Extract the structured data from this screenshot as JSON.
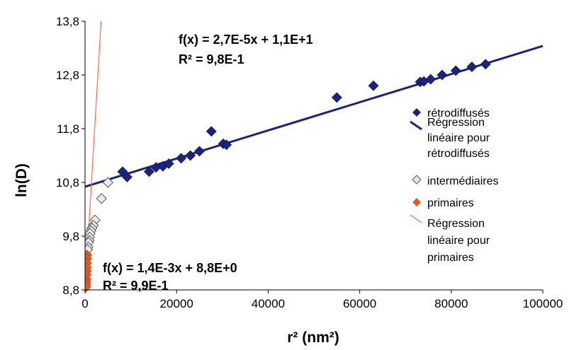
{
  "chart_data": {
    "type": "scatter",
    "xlabel": "r² (nm²)",
    "ylabel": "ln(D)",
    "xlim": [
      0,
      100000
    ],
    "ylim": [
      8.8,
      13.8
    ],
    "x_ticks": [
      "0",
      "20000",
      "40000",
      "60000",
      "80000",
      "100000"
    ],
    "x_tick_values": [
      0,
      20000,
      40000,
      60000,
      80000,
      100000
    ],
    "y_ticks": [
      "8,8",
      "9,8",
      "10,8",
      "11,8",
      "12,8",
      "13,8"
    ],
    "y_tick_values": [
      8.8,
      9.8,
      10.8,
      11.8,
      12.8,
      13.8
    ],
    "grid": false,
    "legend_position": "right",
    "series": [
      {
        "name": "rétrodiffusés",
        "kind": "points",
        "marker": "diamond",
        "color": "#1a237e",
        "points": [
          [
            8200,
            11.0
          ],
          [
            9200,
            10.9
          ],
          [
            14000,
            11.0
          ],
          [
            15500,
            11.08
          ],
          [
            17000,
            11.1
          ],
          [
            18300,
            11.15
          ],
          [
            21000,
            11.25
          ],
          [
            23000,
            11.3
          ],
          [
            25000,
            11.38
          ],
          [
            27600,
            11.75
          ],
          [
            30200,
            11.52
          ],
          [
            30900,
            11.5
          ],
          [
            55000,
            12.38
          ],
          [
            63000,
            12.6
          ],
          [
            73200,
            12.67
          ],
          [
            74000,
            12.68
          ],
          [
            75500,
            12.72
          ],
          [
            78000,
            12.8
          ],
          [
            81000,
            12.88
          ],
          [
            84500,
            12.95
          ],
          [
            87500,
            13.0
          ]
        ]
      },
      {
        "name": "Régression linéaire pour rétrodiffusés",
        "kind": "line",
        "color": "#1a237e",
        "points": [
          [
            0,
            10.72
          ],
          [
            100000,
            13.34
          ]
        ]
      },
      {
        "name": "intermédiaires",
        "kind": "points",
        "marker": "diamond-open",
        "color": "#d0d0d0",
        "points": [
          [
            5000,
            10.8
          ],
          [
            3600,
            10.5
          ],
          [
            2200,
            10.1
          ],
          [
            1800,
            10.0
          ],
          [
            1500,
            9.95
          ],
          [
            1300,
            9.9
          ],
          [
            1100,
            9.85
          ],
          [
            1000,
            9.78
          ],
          [
            900,
            9.72
          ],
          [
            750,
            9.68
          ],
          [
            650,
            9.6
          ],
          [
            550,
            9.55
          ]
        ]
      },
      {
        "name": "primaires",
        "kind": "points",
        "marker": "diamond",
        "color": "#e65a1e",
        "points": [
          [
            400,
            9.45
          ],
          [
            380,
            9.38
          ],
          [
            350,
            9.3
          ],
          [
            320,
            9.22
          ],
          [
            300,
            9.15
          ],
          [
            270,
            9.08
          ],
          [
            240,
            9.0
          ],
          [
            210,
            8.95
          ],
          [
            180,
            8.9
          ],
          [
            150,
            8.85
          ]
        ]
      },
      {
        "name": "Régression linéaire pour primaires",
        "kind": "line",
        "color": "#ff6a4a",
        "points": [
          [
            0,
            8.8
          ],
          [
            3500,
            13.8
          ]
        ]
      }
    ],
    "annotations": [
      {
        "lines": [
          "f(x) = 2,7E-5x + 1,1E+1",
          "R² = 9,8E-1"
        ]
      },
      {
        "lines": [
          "f(x) = 1,4E-3x + 8,8E+0",
          "R² = 9,9E-1"
        ]
      }
    ],
    "legend": [
      {
        "lines": [
          "rétrodiffusés"
        ],
        "symbol": "diamond",
        "color": "#1a237e"
      },
      {
        "lines": [
          "Régression",
          "linéaire pour",
          "rétrodiffusés"
        ],
        "symbol": "line",
        "color": "#1a237e"
      },
      {
        "lines": [
          "intermédiaires"
        ],
        "symbol": "diamond-open",
        "color": "#d0d0d0"
      },
      {
        "lines": [
          "primaires"
        ],
        "symbol": "diamond",
        "color": "#e65a1e"
      },
      {
        "lines": [
          "Régression",
          "linéaire pour",
          "primaires"
        ],
        "symbol": "line-thin",
        "color": "#ff6a4a"
      }
    ]
  }
}
